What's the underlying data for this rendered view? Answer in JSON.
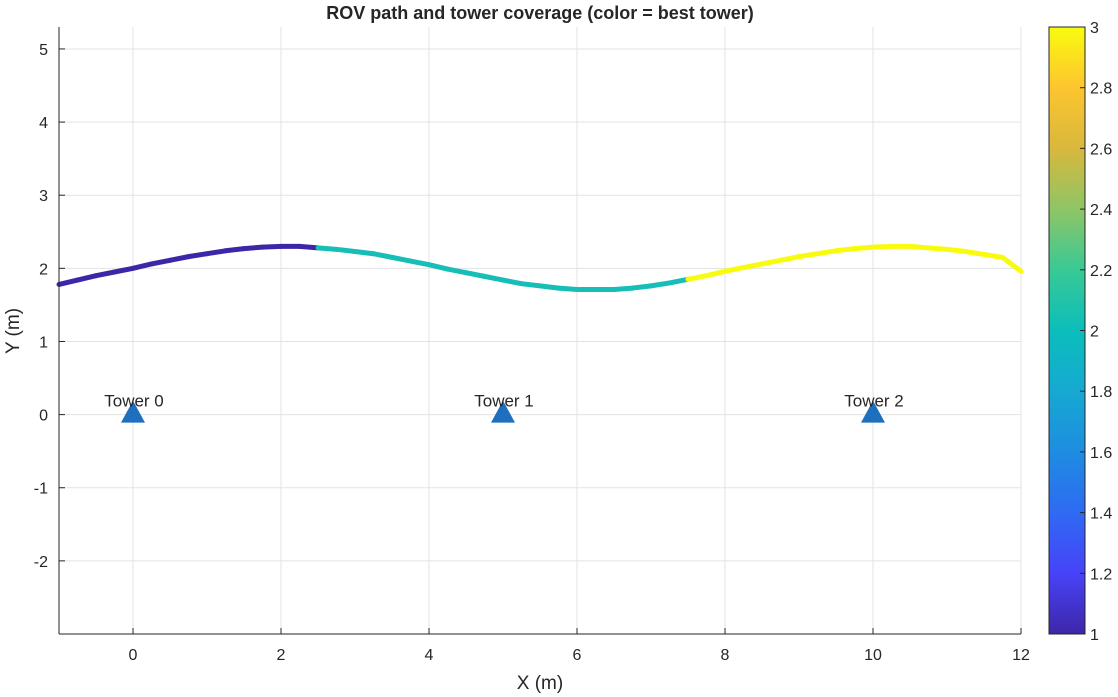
{
  "chart_data": {
    "type": "scatter",
    "title": "ROV path and tower coverage (color = best tower)",
    "xlabel": "X (m)",
    "ylabel": "Y (m)",
    "xlim": [
      -1,
      12
    ],
    "ylim": [
      -3,
      5.3
    ],
    "xticks": [
      "0",
      "2",
      "4",
      "6",
      "8",
      "10",
      "12"
    ],
    "yticks": [
      "-2",
      "-1",
      "0",
      "1",
      "2",
      "3",
      "4",
      "5"
    ],
    "grid": true,
    "path": {
      "x": [
        -1.0,
        -0.75,
        -0.5,
        -0.25,
        0.0,
        0.25,
        0.5,
        0.75,
        1.0,
        1.25,
        1.5,
        1.75,
        2.0,
        2.25,
        2.5,
        2.75,
        3.0,
        3.25,
        3.5,
        3.75,
        4.0,
        4.25,
        4.5,
        4.75,
        5.0,
        5.25,
        5.5,
        5.75,
        6.0,
        6.25,
        6.5,
        6.75,
        7.0,
        7.25,
        7.5,
        7.75,
        8.0,
        8.25,
        8.5,
        8.75,
        9.0,
        9.25,
        9.5,
        9.75,
        10.0,
        10.25,
        10.5,
        10.75,
        11.0,
        11.25,
        11.5,
        11.75,
        12.0
      ],
      "y": [
        1.78,
        1.84,
        1.9,
        1.95,
        2.0,
        2.06,
        2.11,
        2.16,
        2.2,
        2.24,
        2.27,
        2.29,
        2.3,
        2.3,
        2.28,
        2.26,
        2.23,
        2.2,
        2.15,
        2.1,
        2.05,
        1.99,
        1.94,
        1.89,
        1.84,
        1.79,
        1.76,
        1.73,
        1.71,
        1.71,
        1.71,
        1.73,
        1.76,
        1.8,
        1.85,
        1.9,
        1.96,
        2.01,
        2.06,
        2.11,
        2.16,
        2.2,
        2.24,
        2.27,
        2.29,
        2.3,
        2.3,
        2.28,
        2.26,
        2.23,
        2.19,
        2.15,
        1.96
      ],
      "best_tower": [
        1,
        1,
        1,
        1,
        1,
        1,
        1,
        1,
        1,
        1,
        1,
        1,
        1,
        1,
        1,
        2,
        2,
        2,
        2,
        2,
        2,
        2,
        2,
        2,
        2,
        2,
        2,
        2,
        2,
        2,
        2,
        2,
        2,
        2,
        2,
        3,
        3,
        3,
        3,
        3,
        3,
        3,
        3,
        3,
        3,
        3,
        3,
        3,
        3,
        3,
        3,
        3,
        3
      ]
    },
    "towers": [
      {
        "label": "Tower 0",
        "x": 0,
        "y": 0
      },
      {
        "label": "Tower 1",
        "x": 5,
        "y": 0
      },
      {
        "label": "Tower 2",
        "x": 10,
        "y": 0
      }
    ],
    "tower_color": "#1f6fbf",
    "colorbar": {
      "range": [
        1,
        3
      ],
      "ticks": [
        "1",
        "1.2",
        "1.4",
        "1.6",
        "1.8",
        "2",
        "2.2",
        "2.4",
        "2.6",
        "2.8",
        "3"
      ],
      "colormap": "parula",
      "class_colors": {
        "1": "#3e26a8",
        "2": "#17beb8",
        "3": "#f9fb0e"
      }
    }
  }
}
